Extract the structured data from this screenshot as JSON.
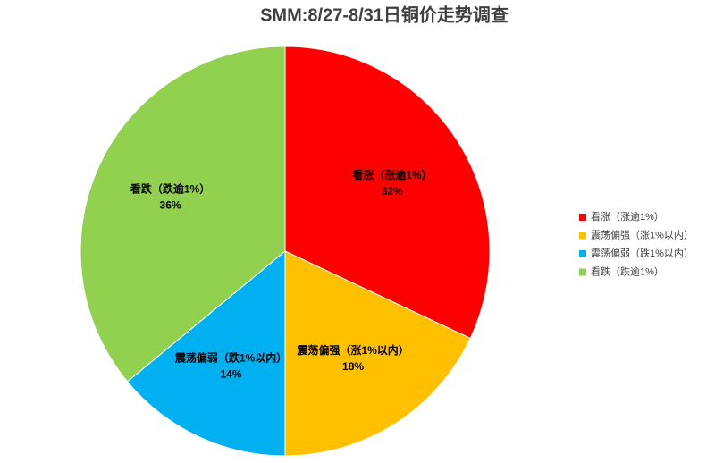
{
  "chart_data": {
    "type": "pie",
    "title": "SMM:8/27-8/31日铜价走势调查",
    "categories": [
      "看涨（涨逾1%）",
      "震荡偏强（涨1%以内）",
      "震荡偏弱（跌1%以内）",
      "看跌（跌逾1%）"
    ],
    "values": [
      32,
      18,
      14,
      36
    ],
    "value_labels": [
      "32%",
      "18%",
      "14%",
      "36%"
    ],
    "colors": [
      "#ff0000",
      "#ffc000",
      "#00b0f0",
      "#92d050"
    ],
    "legend": "right"
  }
}
